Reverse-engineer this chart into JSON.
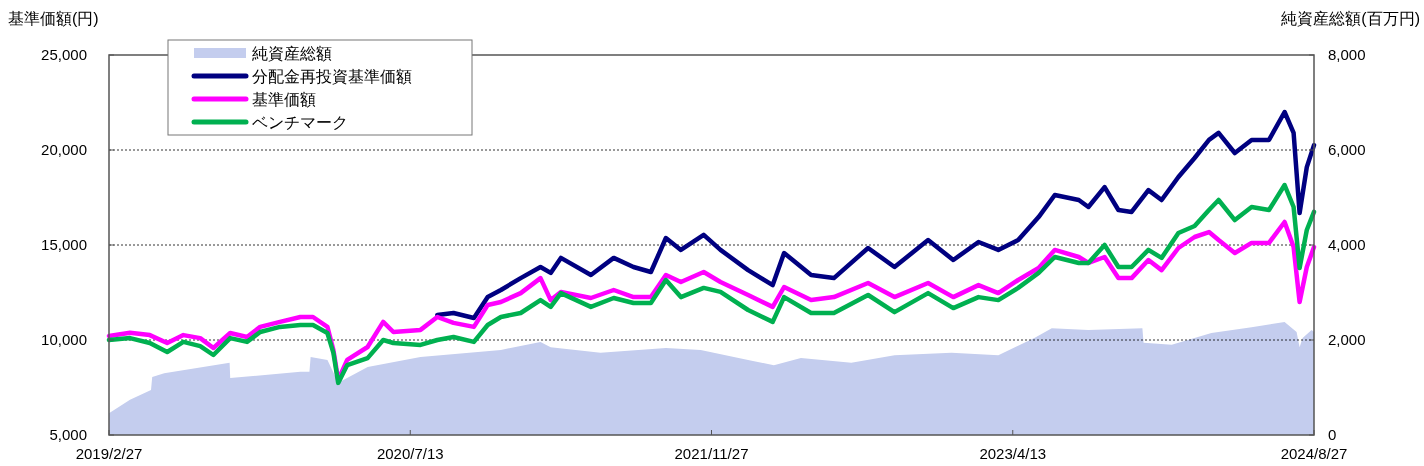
{
  "chart_data": {
    "type": "line",
    "ylabel": "基準価額(円)",
    "y2label": "純資産総額(百万円)",
    "xlim": [
      "2019-02-27",
      "2024-08-27"
    ],
    "xticks": [
      {
        "value": "2019-02-27",
        "label": "2019/2/27"
      },
      {
        "value": "2020-07-13",
        "label": "2020/7/13"
      },
      {
        "value": "2021-11-27",
        "label": "2021/11/27"
      },
      {
        "value": "2023-04-13",
        "label": "2023/4/13"
      },
      {
        "value": "2024-08-27",
        "label": "2024/8/27"
      }
    ],
    "ylim": [
      5000,
      25000
    ],
    "yticks": [
      {
        "value": 5000,
        "label": "5,000"
      },
      {
        "value": 10000,
        "label": "10,000"
      },
      {
        "value": 15000,
        "label": "15,000"
      },
      {
        "value": 20000,
        "label": "20,000"
      },
      {
        "value": 25000,
        "label": "25,000"
      }
    ],
    "y2lim": [
      0,
      8000
    ],
    "y2ticks": [
      0,
      {
        "value": 2000,
        "label": "2,000"
      },
      {
        "value": 4000,
        "label": "4,000"
      },
      {
        "value": 6000,
        "label": "6,000"
      },
      {
        "value": 8000,
        "label": "8,000"
      }
    ],
    "grid": "y",
    "legend": "top left",
    "marker": "none",
    "line_style": "solid",
    "x": [
      "2019-02-27",
      "2019-04-03",
      "2019-05-06",
      "2019-06-04",
      "2019-07-01",
      "2019-07-29",
      "2019-08-20",
      "2019-09-17",
      "2019-10-15",
      "2019-11-06",
      "2019-12-09",
      "2020-01-12",
      "2020-02-02",
      "2020-02-26",
      "2020-03-07",
      "2020-03-15",
      "2020-03-30",
      "2020-05-03",
      "2020-05-29",
      "2020-06-15",
      "2020-07-30",
      "2020-08-27",
      "2020-09-23",
      "2020-10-27",
      "2020-11-19",
      "2020-12-11",
      "2021-01-13",
      "2021-02-15",
      "2021-03-04",
      "2021-03-21",
      "2021-05-10",
      "2021-06-17",
      "2021-07-20",
      "2021-08-18",
      "2021-09-12",
      "2021-10-07",
      "2021-11-14",
      "2021-12-12",
      "2022-01-27",
      "2022-03-09",
      "2022-03-28",
      "2022-05-12",
      "2022-06-19",
      "2022-08-15",
      "2022-09-28",
      "2022-11-23",
      "2023-01-04",
      "2023-02-15",
      "2023-03-20",
      "2023-04-22",
      "2023-05-26",
      "2023-06-22",
      "2023-08-01",
      "2023-08-17",
      "2023-09-13",
      "2023-10-06",
      "2023-10-28",
      "2023-11-25",
      "2023-12-17",
      "2024-01-14",
      "2024-02-10",
      "2024-03-05",
      "2024-03-21",
      "2024-04-17",
      "2024-05-15",
      "2024-06-13",
      "2024-07-09",
      "2024-07-24",
      "2024-08-03",
      "2024-08-15",
      "2024-08-27"
    ],
    "series": [
      {
        "name": "純資産総額",
        "type": "area",
        "axis": "y2",
        "color": "#c4cdee",
        "x": [
          "2019-02-27",
          "2019-04-03",
          "2019-05-08",
          "2019-05-10",
          "2019-05-30",
          "2019-09-16",
          "2019-09-17",
          "2020-01-12",
          "2020-01-27",
          "2020-01-29",
          "2020-02-26",
          "2020-03-15",
          "2020-05-03",
          "2020-07-30",
          "2020-12-11",
          "2021-02-15",
          "2021-03-04",
          "2021-05-26",
          "2021-09-12",
          "2021-11-09",
          "2022-01-27",
          "2022-03-11",
          "2022-04-25",
          "2022-07-18",
          "2022-09-28",
          "2023-01-01",
          "2023-03-20",
          "2023-05-19",
          "2023-06-17",
          "2023-08-17",
          "2023-11-15",
          "2023-11-17",
          "2024-01-03",
          "2024-03-09",
          "2024-05-15",
          "2024-07-09",
          "2024-07-29",
          "2024-08-03",
          "2024-08-08",
          "2024-08-23",
          "2024-08-27"
        ],
        "values": [
          460,
          740,
          950,
          1220,
          1300,
          1520,
          1200,
          1330,
          1330,
          1640,
          1580,
          1100,
          1430,
          1640,
          1790,
          1960,
          1850,
          1730,
          1830,
          1790,
          1580,
          1470,
          1620,
          1520,
          1680,
          1730,
          1680,
          2040,
          2250,
          2210,
          2250,
          1940,
          1900,
          2150,
          2270,
          2380,
          2170,
          1850,
          2040,
          2210,
          2170
        ]
      },
      {
        "name": "分配金再投資基準価額",
        "color": "#000080",
        "values": [
          null,
          null,
          null,
          null,
          null,
          null,
          null,
          null,
          null,
          null,
          null,
          null,
          null,
          null,
          null,
          null,
          null,
          null,
          null,
          null,
          null,
          11320,
          11420,
          11160,
          12260,
          12630,
          13260,
          13840,
          13530,
          14320,
          13420,
          14320,
          13840,
          13580,
          15370,
          14740,
          15530,
          14740,
          13680,
          12890,
          14580,
          13420,
          13260,
          14840,
          13840,
          15260,
          14210,
          15160,
          14740,
          15260,
          16470,
          17630,
          17370,
          17000,
          18050,
          16840,
          16740,
          17890,
          17370,
          18580,
          19580,
          20530,
          20900,
          19840,
          20530,
          20530,
          22000,
          20900,
          16680,
          19100,
          20260
        ]
      },
      {
        "name": "基準価額",
        "color": "#ff00ff",
        "values": [
          10210,
          10380,
          10260,
          9840,
          10260,
          10100,
          9580,
          10370,
          10160,
          10690,
          10950,
          11210,
          11210,
          10690,
          9470,
          7900,
          8950,
          9630,
          10950,
          10420,
          10530,
          11210,
          10900,
          10690,
          11840,
          12000,
          12470,
          13260,
          12100,
          12530,
          12210,
          12630,
          12260,
          12260,
          13420,
          13050,
          13580,
          13050,
          12370,
          11740,
          12790,
          12100,
          12260,
          13000,
          12260,
          13000,
          12260,
          12890,
          12470,
          13160,
          13790,
          14740,
          14370,
          14050,
          14370,
          13260,
          13260,
          14210,
          13680,
          14840,
          15420,
          15680,
          15260,
          14580,
          15110,
          15110,
          16210,
          14890,
          12000,
          13840,
          14890
        ]
      },
      {
        "name": "ベンチマーク",
        "color": "#00b050",
        "values": [
          10000,
          10100,
          9840,
          9370,
          9900,
          9680,
          9210,
          10100,
          9900,
          10420,
          10690,
          10790,
          10790,
          10370,
          9320,
          7740,
          8680,
          9050,
          10000,
          9840,
          9740,
          10000,
          10160,
          9900,
          10790,
          11210,
          11420,
          12100,
          11740,
          12470,
          11740,
          12210,
          11950,
          11950,
          13160,
          12260,
          12740,
          12530,
          11580,
          10950,
          12260,
          11420,
          11420,
          12370,
          11470,
          12470,
          11680,
          12260,
          12100,
          12740,
          13530,
          14370,
          14050,
          14050,
          15000,
          13840,
          13840,
          14740,
          14320,
          15630,
          16000,
          16840,
          17370,
          16310,
          17000,
          16840,
          18160,
          17000,
          13790,
          15790,
          16740
        ]
      }
    ]
  }
}
